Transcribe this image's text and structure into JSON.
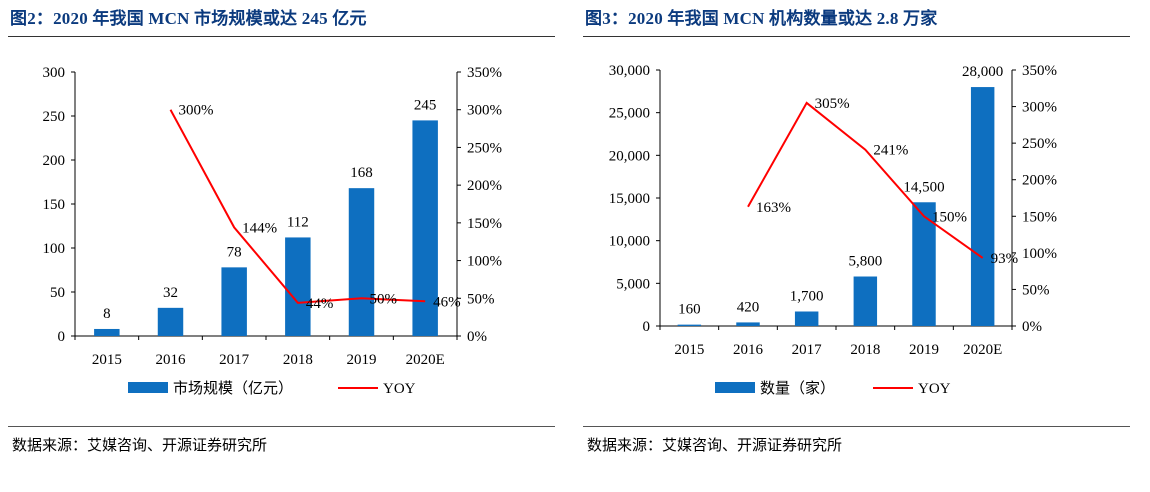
{
  "figures": [
    {
      "title": "图2：2020 年我国 MCN 市场规模或达 245 亿元",
      "source": "数据来源：艾媒咨询、开源证券研究所"
    },
    {
      "title": "图3：2020 年我国 MCN 机构数量或达 2.8 万家",
      "source": "数据来源：艾媒咨询、开源证券研究所"
    }
  ],
  "chart_data": [
    {
      "type": "bar",
      "categories": [
        "2015",
        "2016",
        "2017",
        "2018",
        "2019",
        "2020E"
      ],
      "series": [
        {
          "name": "市场规模（亿元）",
          "type": "bar",
          "axis": "left",
          "values": [
            8,
            32,
            78,
            112,
            168,
            245
          ],
          "labels": [
            "8",
            "32",
            "78",
            "112",
            "168",
            "245"
          ],
          "color": "#0e6fc0"
        },
        {
          "name": "YOY",
          "type": "line",
          "axis": "right",
          "values": [
            null,
            300,
            144,
            44,
            50,
            46
          ],
          "labels": [
            "",
            "300%",
            "144%",
            "44%",
            "50%",
            "46%"
          ],
          "color": "#ff0000"
        }
      ],
      "left_axis": {
        "min": 0,
        "max": 300,
        "ticks": [
          "0",
          "50",
          "100",
          "150",
          "200",
          "250",
          "300"
        ]
      },
      "right_axis": {
        "min": 0,
        "max": 350,
        "ticks": [
          "0%",
          "50%",
          "100%",
          "150%",
          "200%",
          "250%",
          "300%",
          "350%"
        ]
      },
      "legend_position": "bottom",
      "grid": false
    },
    {
      "type": "bar",
      "categories": [
        "2015",
        "2016",
        "2017",
        "2018",
        "2019",
        "2020E"
      ],
      "series": [
        {
          "name": "数量（家）",
          "type": "bar",
          "axis": "left",
          "values": [
            160,
            420,
            1700,
            5800,
            14500,
            28000
          ],
          "labels": [
            "160",
            "420",
            "1,700",
            "5,800",
            "14,500",
            "28,000"
          ],
          "color": "#0e6fc0"
        },
        {
          "name": "YOY",
          "type": "line",
          "axis": "right",
          "values": [
            null,
            163,
            305,
            241,
            150,
            93
          ],
          "labels": [
            "",
            "163%",
            "305%",
            "241%",
            "150%",
            "93%"
          ],
          "color": "#ff0000"
        }
      ],
      "left_axis": {
        "min": 0,
        "max": 30000,
        "ticks": [
          "0",
          "5,000",
          "10,000",
          "15,000",
          "20,000",
          "25,000",
          "30,000"
        ]
      },
      "right_axis": {
        "min": 0,
        "max": 350,
        "ticks": [
          "0%",
          "50%",
          "100%",
          "150%",
          "200%",
          "250%",
          "300%",
          "350%"
        ]
      },
      "legend_position": "bottom",
      "grid": false
    }
  ]
}
